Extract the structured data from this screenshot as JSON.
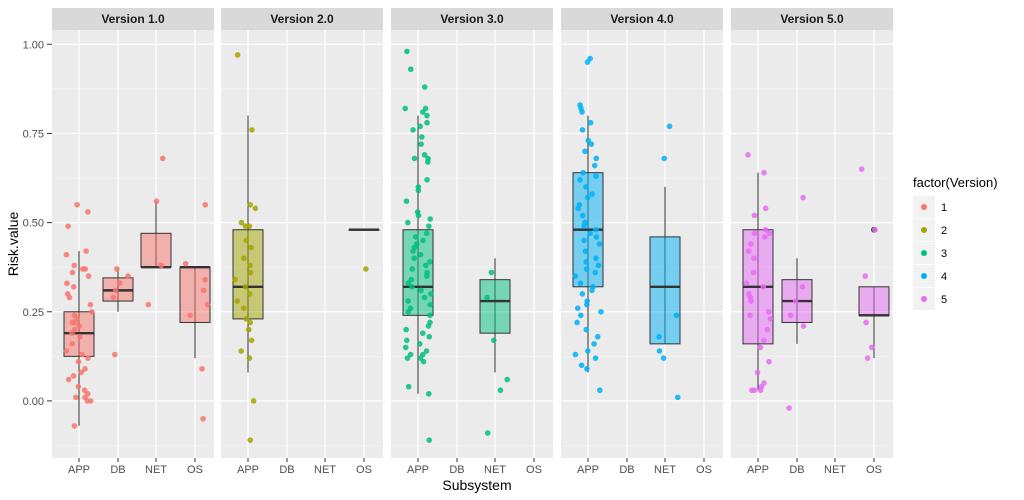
{
  "chart_data": {
    "type": "box",
    "xlabel": "Subsystem",
    "ylabel": "Risk.value",
    "ylim": [
      -0.16,
      1.04
    ],
    "y_ticks": [
      "0.00",
      "0.25",
      "0.50",
      "0.75",
      "1.00"
    ],
    "categories": [
      "APP",
      "DB",
      "NET",
      "OS"
    ],
    "facets": [
      "Version 1.0",
      "Version 2.0",
      "Version 3.0",
      "Version 4.0",
      "Version 5.0"
    ],
    "legend": {
      "title": "factor(Version)",
      "position": "right",
      "items": [
        {
          "label": "1",
          "color": "#F8766D"
        },
        {
          "label": "2",
          "color": "#A3A500"
        },
        {
          "label": "3",
          "color": "#00BF7D"
        },
        {
          "label": "4",
          "color": "#00B0F6"
        },
        {
          "label": "5",
          "color": "#E76BF3"
        }
      ]
    },
    "panels": [
      {
        "facet": "Version 1.0",
        "color": "#F8766D",
        "boxes": [
          {
            "category": "APP",
            "min": -0.07,
            "q1": 0.125,
            "median": 0.19,
            "q3": 0.25,
            "max": 0.42,
            "points": [
              0.55,
              0.53,
              0.49,
              0.42,
              0.41,
              0.38,
              0.37,
              0.37,
              0.36,
              0.35,
              0.33,
              0.32,
              0.3,
              0.29,
              0.27,
              0.25,
              0.24,
              0.23,
              0.22,
              0.22,
              0.21,
              0.2,
              0.19,
              0.18,
              0.16,
              0.14,
              0.13,
              0.12,
              0.11,
              0.09,
              0.08,
              0.07,
              0.06,
              0.04,
              0.03,
              0.02,
              0.01,
              0.01,
              0.0,
              0.0,
              -0.07
            ]
          },
          {
            "category": "DB",
            "min": 0.25,
            "q1": 0.28,
            "median": 0.31,
            "q3": 0.345,
            "max": 0.375,
            "points": [
              0.37,
              0.35,
              0.33,
              0.31,
              0.29,
              0.13
            ]
          },
          {
            "category": "NET",
            "min": 0.375,
            "q1": 0.375,
            "median": 0.375,
            "q3": 0.47,
            "max": 0.56,
            "points": [
              0.68,
              0.56,
              0.38,
              0.27
            ]
          },
          {
            "category": "OS",
            "min": 0.12,
            "q1": 0.22,
            "median": 0.375,
            "q3": 0.375,
            "max": 0.375,
            "points": [
              0.55,
              0.385,
              0.34,
              0.31,
              0.27,
              0.24,
              0.09,
              -0.05
            ]
          }
        ]
      },
      {
        "facet": "Version 2.0",
        "color": "#A3A500",
        "boxes": [
          {
            "category": "APP",
            "min": 0.08,
            "q1": 0.23,
            "median": 0.32,
            "q3": 0.48,
            "max": 0.8,
            "points": [
              0.97,
              0.76,
              0.55,
              0.54,
              0.5,
              0.49,
              0.49,
              0.45,
              0.43,
              0.4,
              0.38,
              0.36,
              0.34,
              0.32,
              0.3,
              0.28,
              0.26,
              0.23,
              0.22,
              0.2,
              0.17,
              0.14,
              0.12,
              0.0,
              -0.11
            ]
          },
          {
            "category": "DB",
            "min": null,
            "q1": null,
            "median": null,
            "q3": null,
            "max": null,
            "points": []
          },
          {
            "category": "NET",
            "min": null,
            "q1": null,
            "median": null,
            "q3": null,
            "max": null,
            "points": []
          },
          {
            "category": "OS",
            "min": 0.48,
            "q1": 0.48,
            "median": 0.48,
            "q3": 0.48,
            "max": 0.48,
            "points": [
              0.37
            ]
          }
        ]
      },
      {
        "facet": "Version 3.0",
        "color": "#00BF7D",
        "boxes": [
          {
            "category": "APP",
            "min": 0.02,
            "q1": 0.24,
            "median": 0.32,
            "q3": 0.48,
            "max": 0.8,
            "points": [
              0.98,
              0.93,
              0.88,
              0.82,
              0.82,
              0.81,
              0.8,
              0.78,
              0.77,
              0.76,
              0.74,
              0.72,
              0.69,
              0.68,
              0.68,
              0.67,
              0.62,
              0.6,
              0.59,
              0.56,
              0.53,
              0.52,
              0.51,
              0.5,
              0.49,
              0.47,
              0.46,
              0.45,
              0.44,
              0.43,
              0.42,
              0.41,
              0.4,
              0.39,
              0.38,
              0.37,
              0.36,
              0.35,
              0.34,
              0.33,
              0.32,
              0.31,
              0.3,
              0.29,
              0.28,
              0.27,
              0.26,
              0.25,
              0.24,
              0.22,
              0.21,
              0.2,
              0.19,
              0.18,
              0.17,
              0.16,
              0.15,
              0.14,
              0.13,
              0.13,
              0.12,
              0.12,
              0.11,
              0.04,
              0.02,
              -0.11
            ]
          },
          {
            "category": "DB",
            "min": null,
            "q1": null,
            "median": null,
            "q3": null,
            "max": null,
            "points": []
          },
          {
            "category": "NET",
            "min": 0.08,
            "q1": 0.19,
            "median": 0.28,
            "q3": 0.34,
            "max": 0.4,
            "points": [
              0.36,
              0.29,
              0.17,
              0.06,
              0.03,
              -0.09
            ]
          },
          {
            "category": "OS",
            "min": null,
            "q1": null,
            "median": null,
            "q3": null,
            "max": null,
            "points": []
          }
        ]
      },
      {
        "facet": "Version 4.0",
        "color": "#00B0F6",
        "boxes": [
          {
            "category": "APP",
            "min": 0.08,
            "q1": 0.32,
            "median": 0.48,
            "q3": 0.64,
            "max": 0.8,
            "points": [
              0.96,
              0.95,
              0.83,
              0.82,
              0.81,
              0.78,
              0.76,
              0.73,
              0.72,
              0.7,
              0.68,
              0.66,
              0.64,
              0.63,
              0.62,
              0.6,
              0.58,
              0.57,
              0.55,
              0.54,
              0.52,
              0.5,
              0.49,
              0.48,
              0.47,
              0.46,
              0.45,
              0.44,
              0.42,
              0.4,
              0.39,
              0.38,
              0.37,
              0.36,
              0.35,
              0.33,
              0.32,
              0.31,
              0.3,
              0.28,
              0.27,
              0.26,
              0.25,
              0.24,
              0.22,
              0.2,
              0.18,
              0.16,
              0.14,
              0.13,
              0.12,
              0.1,
              0.09,
              0.03
            ]
          },
          {
            "category": "DB",
            "min": null,
            "q1": null,
            "median": null,
            "q3": null,
            "max": null,
            "points": []
          },
          {
            "category": "NET",
            "min": 0.16,
            "q1": 0.16,
            "median": 0.32,
            "q3": 0.46,
            "max": 0.6,
            "points": [
              0.77,
              0.68,
              0.24,
              0.18,
              0.14,
              0.12,
              0.01
            ]
          },
          {
            "category": "OS",
            "min": null,
            "q1": null,
            "median": null,
            "q3": null,
            "max": null,
            "points": []
          }
        ]
      },
      {
        "facet": "Version 5.0",
        "color": "#E76BF3",
        "boxes": [
          {
            "category": "APP",
            "min": 0.03,
            "q1": 0.16,
            "median": 0.32,
            "q3": 0.48,
            "max": 0.64,
            "points": [
              0.69,
              0.64,
              0.54,
              0.52,
              0.48,
              0.47,
              0.47,
              0.46,
              0.44,
              0.42,
              0.4,
              0.36,
              0.33,
              0.32,
              0.3,
              0.29,
              0.28,
              0.25,
              0.24,
              0.23,
              0.2,
              0.17,
              0.15,
              0.11,
              0.08,
              0.05,
              0.04,
              0.03,
              0.03,
              0.03
            ]
          },
          {
            "category": "DB",
            "min": 0.16,
            "q1": 0.22,
            "median": 0.28,
            "q3": 0.34,
            "max": 0.4,
            "points": [
              0.57,
              0.32,
              0.28,
              0.24,
              0.21,
              -0.02
            ]
          },
          {
            "category": "NET",
            "min": null,
            "q1": null,
            "median": null,
            "q3": null,
            "max": null,
            "points": []
          },
          {
            "category": "OS",
            "min": 0.12,
            "q1": 0.24,
            "median": 0.24,
            "q3": 0.32,
            "max": 0.32,
            "outliers": [
              0.48
            ],
            "points": [
              0.65,
              0.48,
              0.35,
              0.22,
              0.15,
              0.12
            ]
          }
        ]
      }
    ]
  }
}
